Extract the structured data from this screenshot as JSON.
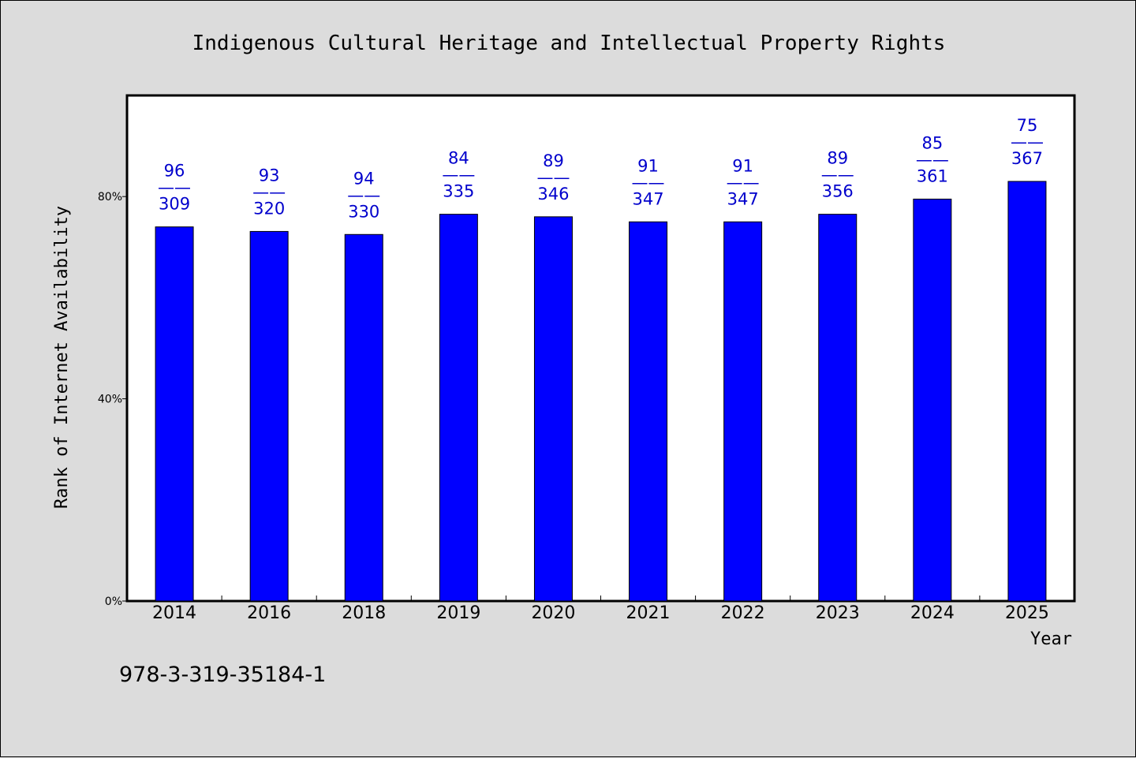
{
  "chart_data": {
    "type": "bar",
    "title": "Indigenous Cultural Heritage and Intellectual Property Rights",
    "xlabel": "Year",
    "ylabel": "Rank of Internet Availability",
    "categories": [
      "2014",
      "2016",
      "2018",
      "2019",
      "2020",
      "2021",
      "2022",
      "2023",
      "2024",
      "2025"
    ],
    "series": [
      {
        "values": [
          74,
          73.1,
          72.5,
          76.5,
          76,
          75,
          75,
          76.5,
          79.5,
          83
        ]
      }
    ],
    "data_labels": [
      {
        "top": "96",
        "sep": "——",
        "bottom": "309"
      },
      {
        "top": "93",
        "sep": "——",
        "bottom": "320"
      },
      {
        "top": "94",
        "sep": "——",
        "bottom": "330"
      },
      {
        "top": "84",
        "sep": "——",
        "bottom": "335"
      },
      {
        "top": "89",
        "sep": "——",
        "bottom": "346"
      },
      {
        "top": "91",
        "sep": "——",
        "bottom": "347"
      },
      {
        "top": "91",
        "sep": "——",
        "bottom": "347"
      },
      {
        "top": "89",
        "sep": "——",
        "bottom": "356"
      },
      {
        "top": "85",
        "sep": "——",
        "bottom": "361"
      },
      {
        "top": "75",
        "sep": "——",
        "bottom": "367"
      }
    ],
    "yticks": [
      {
        "value": 0,
        "label": "0%"
      },
      {
        "value": 40,
        "label": "40%"
      },
      {
        "value": 80,
        "label": "80%"
      }
    ],
    "ylim": [
      0,
      100
    ],
    "grid": false,
    "bar_color": "#0000ff",
    "label_color": "#0000cc",
    "plot_background": "#ffffff",
    "page_background": "#dcdcdc"
  },
  "footer": {
    "isbn": "978-3-319-35184-1"
  }
}
